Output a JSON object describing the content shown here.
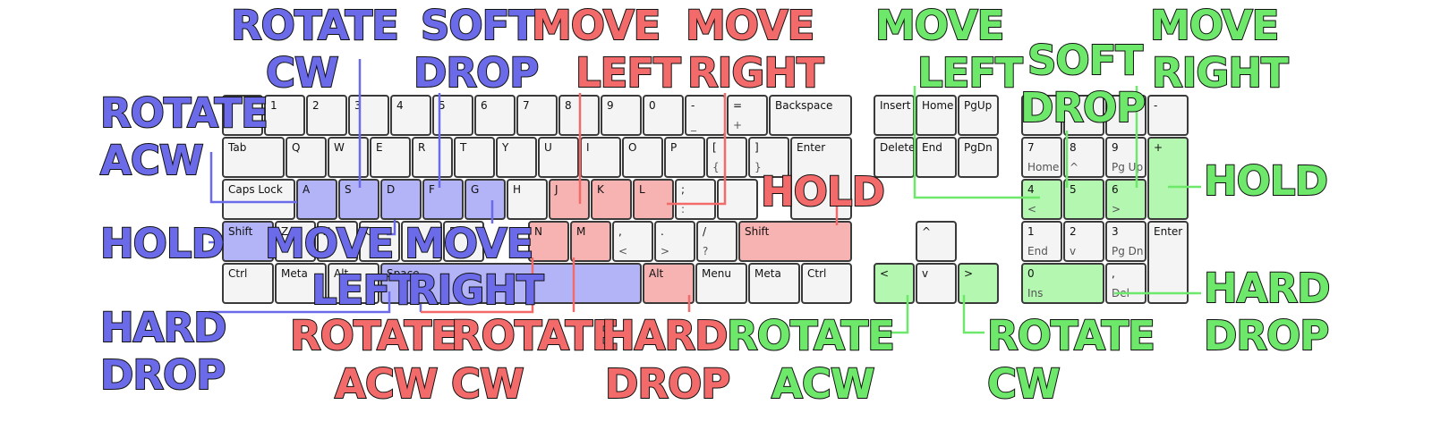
{
  "colors": {
    "blue": "#6b6bea",
    "red": "#f26a6a",
    "green": "#6de86a",
    "blue_key": "#b3b3f8",
    "red_key": "#f7b2b2",
    "green_key": "#b3f7b0"
  },
  "keys": [
    {
      "id": "esc",
      "main": ""
    },
    {
      "id": "1",
      "main": "1"
    },
    {
      "id": "2",
      "main": "2"
    },
    {
      "id": "3",
      "main": "3"
    },
    {
      "id": "4",
      "main": "4"
    },
    {
      "id": "5",
      "main": "5"
    },
    {
      "id": "6",
      "main": "6"
    },
    {
      "id": "7",
      "main": "7"
    },
    {
      "id": "8",
      "main": "8"
    },
    {
      "id": "9",
      "main": "9"
    },
    {
      "id": "0",
      "main": "0"
    },
    {
      "id": "minus",
      "main": "-",
      "sub": "_"
    },
    {
      "id": "equals",
      "main": "=",
      "sub": "+"
    },
    {
      "id": "backspace",
      "main": "Backspace"
    },
    {
      "id": "tab",
      "main": "Tab"
    },
    {
      "id": "q",
      "main": "Q"
    },
    {
      "id": "w",
      "main": "W"
    },
    {
      "id": "e",
      "main": "E"
    },
    {
      "id": "r",
      "main": "R"
    },
    {
      "id": "t",
      "main": "T"
    },
    {
      "id": "y",
      "main": "Y"
    },
    {
      "id": "u",
      "main": "U"
    },
    {
      "id": "i",
      "main": "I"
    },
    {
      "id": "o",
      "main": "O"
    },
    {
      "id": "p",
      "main": "P"
    },
    {
      "id": "lbracket",
      "main": "[",
      "sub": "{"
    },
    {
      "id": "rbracket",
      "main": "]",
      "sub": "}"
    },
    {
      "id": "enter",
      "main": "Enter"
    },
    {
      "id": "capslock",
      "main": "Caps Lock"
    },
    {
      "id": "a",
      "main": "A",
      "color": "blue"
    },
    {
      "id": "s",
      "main": "S",
      "color": "blue"
    },
    {
      "id": "d",
      "main": "D",
      "color": "blue"
    },
    {
      "id": "f",
      "main": "F",
      "color": "blue"
    },
    {
      "id": "g",
      "main": "G",
      "color": "blue"
    },
    {
      "id": "h",
      "main": "H"
    },
    {
      "id": "j",
      "main": "J",
      "color": "red"
    },
    {
      "id": "k",
      "main": "K",
      "color": "red"
    },
    {
      "id": "l",
      "main": "L",
      "color": "red"
    },
    {
      "id": "semicolon",
      "main": ";",
      "sub": ":"
    },
    {
      "id": "quote",
      "main": "'"
    },
    {
      "id": "lshift",
      "main": "Shift",
      "color": "blue"
    },
    {
      "id": "z",
      "main": "Z"
    },
    {
      "id": "x",
      "main": "X"
    },
    {
      "id": "c",
      "main": "C"
    },
    {
      "id": "v",
      "main": "V"
    },
    {
      "id": "b",
      "main": "B"
    },
    {
      "id": "n",
      "main": "N",
      "color": "red"
    },
    {
      "id": "m",
      "main": "M",
      "color": "red"
    },
    {
      "id": "comma",
      "main": ",",
      "sub": "<"
    },
    {
      "id": "period",
      "main": ".",
      "sub": ">"
    },
    {
      "id": "slash",
      "main": "/",
      "sub": "?"
    },
    {
      "id": "rshift",
      "main": "Shift",
      "color": "red"
    },
    {
      "id": "lctrl",
      "main": "Ctrl"
    },
    {
      "id": "lmeta",
      "main": "Meta"
    },
    {
      "id": "lalt",
      "main": "Alt"
    },
    {
      "id": "space",
      "main": "Space",
      "color": "blue"
    },
    {
      "id": "ralt",
      "main": "Alt",
      "color": "red"
    },
    {
      "id": "menu",
      "main": "Menu"
    },
    {
      "id": "rmeta",
      "main": "Meta"
    },
    {
      "id": "rctrl",
      "main": "Ctrl"
    },
    {
      "id": "insert",
      "main": "Insert"
    },
    {
      "id": "home",
      "main": "Home"
    },
    {
      "id": "pgup",
      "main": "PgUp"
    },
    {
      "id": "delete",
      "main": "Delete"
    },
    {
      "id": "end",
      "main": "End"
    },
    {
      "id": "pgdn",
      "main": "PgDn"
    },
    {
      "id": "up",
      "main": "^"
    },
    {
      "id": "left",
      "main": "<",
      "color": "green"
    },
    {
      "id": "down",
      "main": "v"
    },
    {
      "id": "right",
      "main": ">",
      "color": "green"
    },
    {
      "id": "numlock",
      "main": ""
    },
    {
      "id": "numslash",
      "main": ""
    },
    {
      "id": "numstar",
      "main": ""
    },
    {
      "id": "numminus",
      "main": "-"
    },
    {
      "id": "num7",
      "main": "7",
      "sub": "Home"
    },
    {
      "id": "num8",
      "main": "8",
      "sub": "^"
    },
    {
      "id": "num9",
      "main": "9",
      "sub": "Pg Up"
    },
    {
      "id": "numplus",
      "main": "+",
      "color": "green"
    },
    {
      "id": "num4",
      "main": "4",
      "sub": "<",
      "color": "green"
    },
    {
      "id": "num5",
      "main": "5",
      "color": "green"
    },
    {
      "id": "num6",
      "main": "6",
      "sub": ">",
      "color": "green"
    },
    {
      "id": "num1",
      "main": "1",
      "sub": "End"
    },
    {
      "id": "num2",
      "main": "2",
      "sub": "v"
    },
    {
      "id": "num3",
      "main": "3",
      "sub": "Pg Dn"
    },
    {
      "id": "numenter",
      "main": "Enter"
    },
    {
      "id": "num0",
      "main": "0",
      "sub": "Ins",
      "color": "green"
    },
    {
      "id": "numdot",
      "main": ",",
      "sub": "Del"
    }
  ],
  "labels": [
    {
      "id": "rotate-cw-blue",
      "lines": [
        "ROTATE",
        "CW"
      ],
      "color": "blue"
    },
    {
      "id": "soft-drop-blue",
      "lines": [
        "SOFT",
        "DROP"
      ],
      "color": "blue"
    },
    {
      "id": "rotate-acw-blue",
      "lines": [
        "ROTATE",
        "ACW"
      ],
      "color": "blue"
    },
    {
      "id": "hold-blue",
      "lines": [
        "HOLD"
      ],
      "color": "blue"
    },
    {
      "id": "move-left-blue",
      "lines": [
        "MOVE",
        "LEFT"
      ],
      "color": "blue"
    },
    {
      "id": "move-right-blue",
      "lines": [
        "MOVE",
        "RIGHT"
      ],
      "color": "blue"
    },
    {
      "id": "hard-drop-blue",
      "lines": [
        "HARD",
        "DROP"
      ],
      "color": "blue"
    },
    {
      "id": "move-left-red",
      "lines": [
        "MOVE",
        "LEFT"
      ],
      "color": "red"
    },
    {
      "id": "move-right-red",
      "lines": [
        "MOVE",
        "RIGHT"
      ],
      "color": "red"
    },
    {
      "id": "hold-red",
      "lines": [
        "HOLD"
      ],
      "color": "red"
    },
    {
      "id": "rotate-acw-red",
      "lines": [
        "ROTATE",
        "ACW"
      ],
      "color": "red"
    },
    {
      "id": "rotate-cw-red",
      "lines": [
        "ROTATE",
        "CW"
      ],
      "color": "red"
    },
    {
      "id": "hard-drop-red",
      "lines": [
        "HARD",
        "DROP"
      ],
      "color": "red"
    },
    {
      "id": "move-left-green",
      "lines": [
        "MOVE",
        "LEFT"
      ],
      "color": "green"
    },
    {
      "id": "soft-drop-green",
      "lines": [
        "SOFT",
        "DROP"
      ],
      "color": "green"
    },
    {
      "id": "move-right-green",
      "lines": [
        "MOVE",
        "RIGHT"
      ],
      "color": "green"
    },
    {
      "id": "hold-green",
      "lines": [
        "HOLD"
      ],
      "color": "green"
    },
    {
      "id": "hard-drop-green",
      "lines": [
        "HARD",
        "DROP"
      ],
      "color": "green"
    },
    {
      "id": "rotate-acw-green",
      "lines": [
        "ROTATE",
        "ACW"
      ],
      "color": "green"
    },
    {
      "id": "rotate-cw-green",
      "lines": [
        "ROTATE",
        "CW"
      ],
      "color": "green"
    }
  ]
}
